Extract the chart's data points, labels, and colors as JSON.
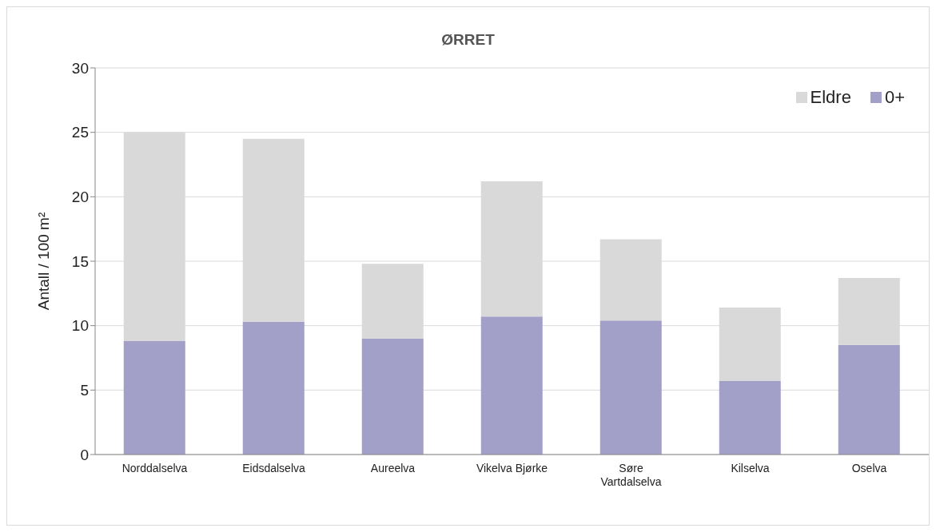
{
  "chart_data": {
    "type": "bar",
    "title": "ØRRET",
    "ylabel": "Antall / 100 m²",
    "categories": [
      "Norddalselva",
      "Eidsdalselva",
      "Aureelva",
      "Vikelva Bjørke",
      "Søre Vartdalselva",
      "Kilselva",
      "Oselva"
    ],
    "series": [
      {
        "name": "0+",
        "color": "#a29fc9",
        "values": [
          8.8,
          10.3,
          9.0,
          10.7,
          10.4,
          5.7,
          8.5
        ]
      },
      {
        "name": "Eldre",
        "color": "#d9d9d9",
        "values": [
          16.2,
          14.2,
          5.8,
          10.5,
          6.3,
          5.7,
          5.2
        ]
      }
    ],
    "stacked": true,
    "ylim": [
      0,
      30
    ],
    "yticks": [
      0,
      5,
      10,
      15,
      20,
      25,
      30
    ],
    "grid": "y",
    "legend": "top right"
  }
}
